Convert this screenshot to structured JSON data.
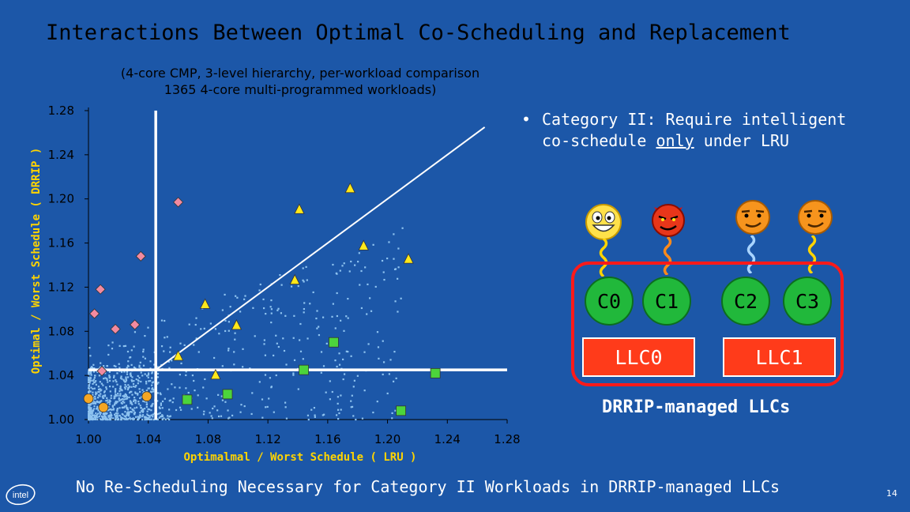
{
  "slide": {
    "title": "Interactions Between Optimal Co-Scheduling and Replacement",
    "subtitle_lines": [
      "(4-core CMP, 3-level hierarchy, per-workload comparison",
      "1365 4-core multi-programmed workloads)"
    ],
    "note_bullet": "•",
    "note_line1": "Category II: Require intelligent",
    "note_line2_pre": "co-schedule ",
    "note_line2_under": "only",
    "note_line2_post": " under LRU",
    "cores": [
      "C0",
      "C1",
      "C2",
      "C3"
    ],
    "llcs": [
      "LLC0",
      "LLC1"
    ],
    "llc_caption": "DRRIP-managed LLCs",
    "footer": "No Re-Scheduling Necessary for Category II Workloads in DRRIP-managed LLCs",
    "page_number": "14",
    "logo_text": "intel",
    "colors": {
      "background": "#1c57a8",
      "axis_label": "#ffd400",
      "core": "#21b83b",
      "llc": "#ff3b1a",
      "frame": "#ff1a1a"
    }
  },
  "chart_data": {
    "type": "scatter",
    "title": "",
    "xlabel": "Optimalmal / Worst Schedule ( LRU )",
    "ylabel": "Optimal / Worst Schedule ( DRRIP )",
    "xlim": [
      1.0,
      1.28
    ],
    "ylim": [
      1.0,
      1.28
    ],
    "x_ticks": [
      "1.00",
      "1.04",
      "1.08",
      "1.12",
      "1.16",
      "1.20",
      "1.24",
      "1.28"
    ],
    "y_ticks": [
      "1.00",
      "1.04",
      "1.08",
      "1.12",
      "1.16",
      "1.20",
      "1.24",
      "1.28"
    ],
    "grid": false,
    "guide_lines": {
      "vertical_x": 1.045,
      "horizontal_y": 1.045,
      "diagonal": [
        [
          1.045,
          1.045
        ],
        [
          1.265,
          1.265
        ]
      ]
    },
    "marker_groups": [
      {
        "marker": "diamond",
        "color": "#f28aa0",
        "points": [
          [
            1.06,
            1.197
          ],
          [
            1.035,
            1.148
          ],
          [
            1.008,
            1.118
          ],
          [
            1.004,
            1.096
          ],
          [
            1.018,
            1.082
          ],
          [
            1.031,
            1.086
          ],
          [
            1.009,
            1.044
          ]
        ]
      },
      {
        "marker": "triangle",
        "color": "#ffe81a",
        "points": [
          [
            1.175,
            1.21
          ],
          [
            1.141,
            1.191
          ],
          [
            1.184,
            1.158
          ],
          [
            1.214,
            1.146
          ],
          [
            1.138,
            1.127
          ],
          [
            1.078,
            1.105
          ],
          [
            1.099,
            1.086
          ],
          [
            1.06,
            1.058
          ],
          [
            1.085,
            1.041
          ]
        ]
      },
      {
        "marker": "square",
        "color": "#4cd43b",
        "points": [
          [
            1.164,
            1.07
          ],
          [
            1.144,
            1.045
          ],
          [
            1.232,
            1.042
          ],
          [
            1.093,
            1.023
          ],
          [
            1.066,
            1.018
          ],
          [
            1.209,
            1.008
          ]
        ]
      },
      {
        "marker": "circle",
        "color": "#f5a623",
        "points": [
          [
            1.0,
            1.019
          ],
          [
            1.01,
            1.011
          ],
          [
            1.039,
            1.021
          ]
        ]
      }
    ],
    "cloud_note": "approximately 1365 small point markers densely clustered near the origin and scattered up to about 1.2"
  }
}
